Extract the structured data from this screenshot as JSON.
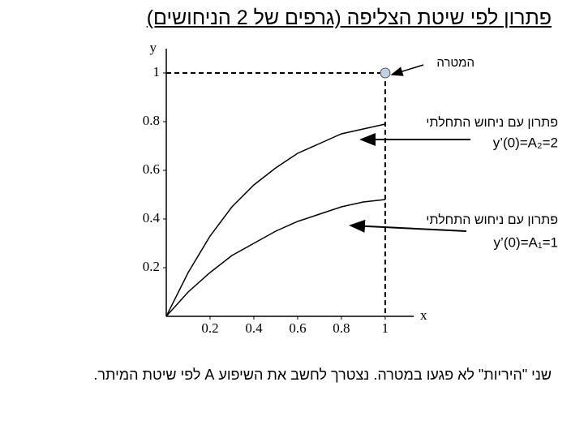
{
  "title": "פתרון לפי שיטת הצליפה (גרפים של 2 הניחושים)",
  "footer": "שני \"היריות\" לא פגעו במטרה. נצטרך לחשב את השיפוע A לפי שיטת המיתר.",
  "chart_data": {
    "type": "line",
    "x_label": "x",
    "y_label": "y",
    "x": [
      0,
      0.1,
      0.2,
      0.3,
      0.4,
      0.5,
      0.6,
      0.7,
      0.8,
      0.9,
      1
    ],
    "series": [
      {
        "name": "פתרון עם ניחוש התחלתי",
        "guess_label": "y’(0)=A₂=2",
        "color": "#000000",
        "values": [
          0,
          0.18,
          0.33,
          0.45,
          0.54,
          0.61,
          0.67,
          0.71,
          0.75,
          0.77,
          0.79
        ]
      },
      {
        "name": "פתרון עם ניחוש התחלתי",
        "guess_label": "y’(0)=A₁=1",
        "color": "#000000",
        "values": [
          0,
          0.1,
          0.18,
          0.25,
          0.3,
          0.35,
          0.39,
          0.42,
          0.45,
          0.47,
          0.48
        ]
      }
    ],
    "target": {
      "label": "המטרה",
      "x": 1,
      "y": 1,
      "color": "#b8d4e6"
    },
    "xlim": [
      0,
      1.13
    ],
    "ylim": [
      0,
      1.1
    ],
    "xticks": [
      0.2,
      0.4,
      0.6,
      0.8,
      1
    ],
    "yticks": [
      0.2,
      0.4,
      0.6,
      0.8,
      1
    ]
  }
}
